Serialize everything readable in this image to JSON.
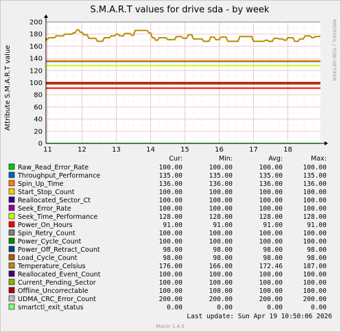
{
  "chart_data": {
    "type": "line",
    "title": "S.M.A.R.T values for drive sda - by week",
    "ylabel": "Attribute S.M.A.R.T value",
    "side_label": "RRDTOOL / TOBI OETIKER",
    "ylim": [
      0,
      200
    ],
    "y_ticks": [
      "0",
      "20",
      "40",
      "60",
      "80",
      "100",
      "120",
      "140",
      "160",
      "180",
      "200"
    ],
    "x_ticks": [
      "11",
      "12",
      "13",
      "14",
      "15",
      "16",
      "17",
      "18"
    ],
    "grid": true,
    "legend_headers": {
      "cur": "Cur:",
      "min": "Min:",
      "avg": "Avg:",
      "max": "Max:"
    },
    "series": [
      {
        "name": "Raw_Read_Error_Rate",
        "color": "#00cc00",
        "cur": "100.00",
        "min": "100.00",
        "avg": "100.00",
        "max": "100.00",
        "value": 100
      },
      {
        "name": "Throughput_Performance",
        "color": "#0066b3",
        "cur": "135.00",
        "min": "135.00",
        "avg": "135.00",
        "max": "135.00",
        "value": 135
      },
      {
        "name": "Spin_Up_Time",
        "color": "#ff8000",
        "cur": "136.00",
        "min": "136.00",
        "avg": "136.00",
        "max": "136.00",
        "value": 136
      },
      {
        "name": "Start_Stop_Count",
        "color": "#ffcc00",
        "cur": "100.00",
        "min": "100.00",
        "avg": "100.00",
        "max": "100.00",
        "value": 100
      },
      {
        "name": "Reallocated_Sector_Ct",
        "color": "#330099",
        "cur": "100.00",
        "min": "100.00",
        "avg": "100.00",
        "max": "100.00",
        "value": 100
      },
      {
        "name": "Seek_Error_Rate",
        "color": "#990099",
        "cur": "100.00",
        "min": "100.00",
        "avg": "100.00",
        "max": "100.00",
        "value": 100
      },
      {
        "name": "Seek_Time_Performance",
        "color": "#ccff00",
        "cur": "128.00",
        "min": "128.00",
        "avg": "128.00",
        "max": "128.00",
        "value": 128
      },
      {
        "name": "Power_On_Hours",
        "color": "#ff0000",
        "cur": "91.00",
        "min": "91.00",
        "avg": "91.00",
        "max": "91.00",
        "value": 91
      },
      {
        "name": "Spin_Retry_Count",
        "color": "#808080",
        "cur": "100.00",
        "min": "100.00",
        "avg": "100.00",
        "max": "100.00",
        "value": 100
      },
      {
        "name": "Power_Cycle_Count",
        "color": "#008f00",
        "cur": "100.00",
        "min": "100.00",
        "avg": "100.00",
        "max": "100.00",
        "value": 100
      },
      {
        "name": "Power_Off_Retract_Count",
        "color": "#00487d",
        "cur": "98.00",
        "min": "98.00",
        "avg": "98.00",
        "max": "98.00",
        "value": 98
      },
      {
        "name": "Load_Cycle_Count",
        "color": "#b35a00",
        "cur": "98.00",
        "min": "98.00",
        "avg": "98.00",
        "max": "98.00",
        "value": 98
      },
      {
        "name": "Temperature_Celsius",
        "color": "#b38f00",
        "cur": "176.00",
        "min": "166.00",
        "avg": "172.46",
        "max": "187.00",
        "x": [
          10.8,
          10.95,
          11.05,
          11.2,
          11.25,
          11.45,
          11.5,
          11.7,
          11.75,
          11.8,
          11.85,
          11.9,
          11.95,
          12.0,
          12.05,
          12.15,
          12.2,
          12.4,
          12.45,
          12.6,
          12.65,
          12.8,
          12.85,
          12.95,
          13.0,
          13.05,
          13.1,
          13.2,
          13.25,
          13.4,
          13.45,
          13.5,
          13.55,
          13.9,
          13.95,
          14.0,
          14.05,
          14.1,
          14.15,
          14.2,
          14.25,
          14.45,
          14.5,
          14.7,
          14.75,
          14.9,
          14.95,
          15.05,
          15.1,
          15.2,
          15.25,
          15.5,
          15.55,
          15.7,
          15.75,
          15.85,
          15.9,
          16.0,
          16.05,
          16.2,
          16.25,
          16.55,
          16.6,
          16.95,
          17.0,
          17.3,
          17.35,
          17.4,
          17.45,
          17.55,
          17.6,
          17.7,
          17.75,
          17.85,
          17.9,
          17.95,
          18.0,
          18.15,
          18.2,
          18.3,
          18.35,
          18.45,
          18.5,
          18.65,
          18.7,
          18.75,
          18.8,
          18.95,
          19.0
        ],
        "y": [
          174,
          170,
          174,
          174,
          177,
          177,
          180,
          180,
          182,
          182,
          187,
          187,
          183,
          183,
          179,
          179,
          173,
          173,
          168,
          168,
          174,
          174,
          177,
          177,
          180,
          180,
          177,
          177,
          181,
          181,
          178,
          178,
          186,
          186,
          182,
          182,
          174,
          174,
          170,
          170,
          174,
          174,
          171,
          171,
          176,
          176,
          173,
          173,
          179,
          179,
          172,
          172,
          168,
          168,
          175,
          175,
          171,
          171,
          175,
          175,
          168,
          168,
          176,
          176,
          168,
          168,
          170,
          170,
          168,
          168,
          173,
          173,
          172,
          172,
          170,
          170,
          174,
          174,
          168,
          168,
          172,
          172,
          177,
          177,
          174,
          174,
          176,
          176,
          176
        ],
        "value": null
      },
      {
        "name": "Reallocated_Event_Count",
        "color": "#4d006e",
        "cur": "100.00",
        "min": "100.00",
        "avg": "100.00",
        "max": "100.00",
        "value": 100
      },
      {
        "name": "Current_Pending_Sector",
        "color": "#8fb300",
        "cur": "100.00",
        "min": "100.00",
        "avg": "100.00",
        "max": "100.00",
        "value": 100
      },
      {
        "name": "Offline_Uncorrectable",
        "color": "#b30000",
        "cur": "100.00",
        "min": "100.00",
        "avg": "100.00",
        "max": "100.00",
        "value": 100
      },
      {
        "name": "UDMA_CRC_Error_Count",
        "color": "#bebebe",
        "cur": "200.00",
        "min": "200.00",
        "avg": "200.00",
        "max": "200.00",
        "value": 200
      },
      {
        "name": "smartctl_exit_status",
        "color": "#80ff80",
        "cur": "0.00",
        "min": "0.00",
        "avg": "0.00",
        "max": "0.00",
        "value": 0
      }
    ],
    "last_update": "Last update:  Sun Apr 19 10:50:06 2026",
    "footer": "Munin 1.4.5"
  }
}
